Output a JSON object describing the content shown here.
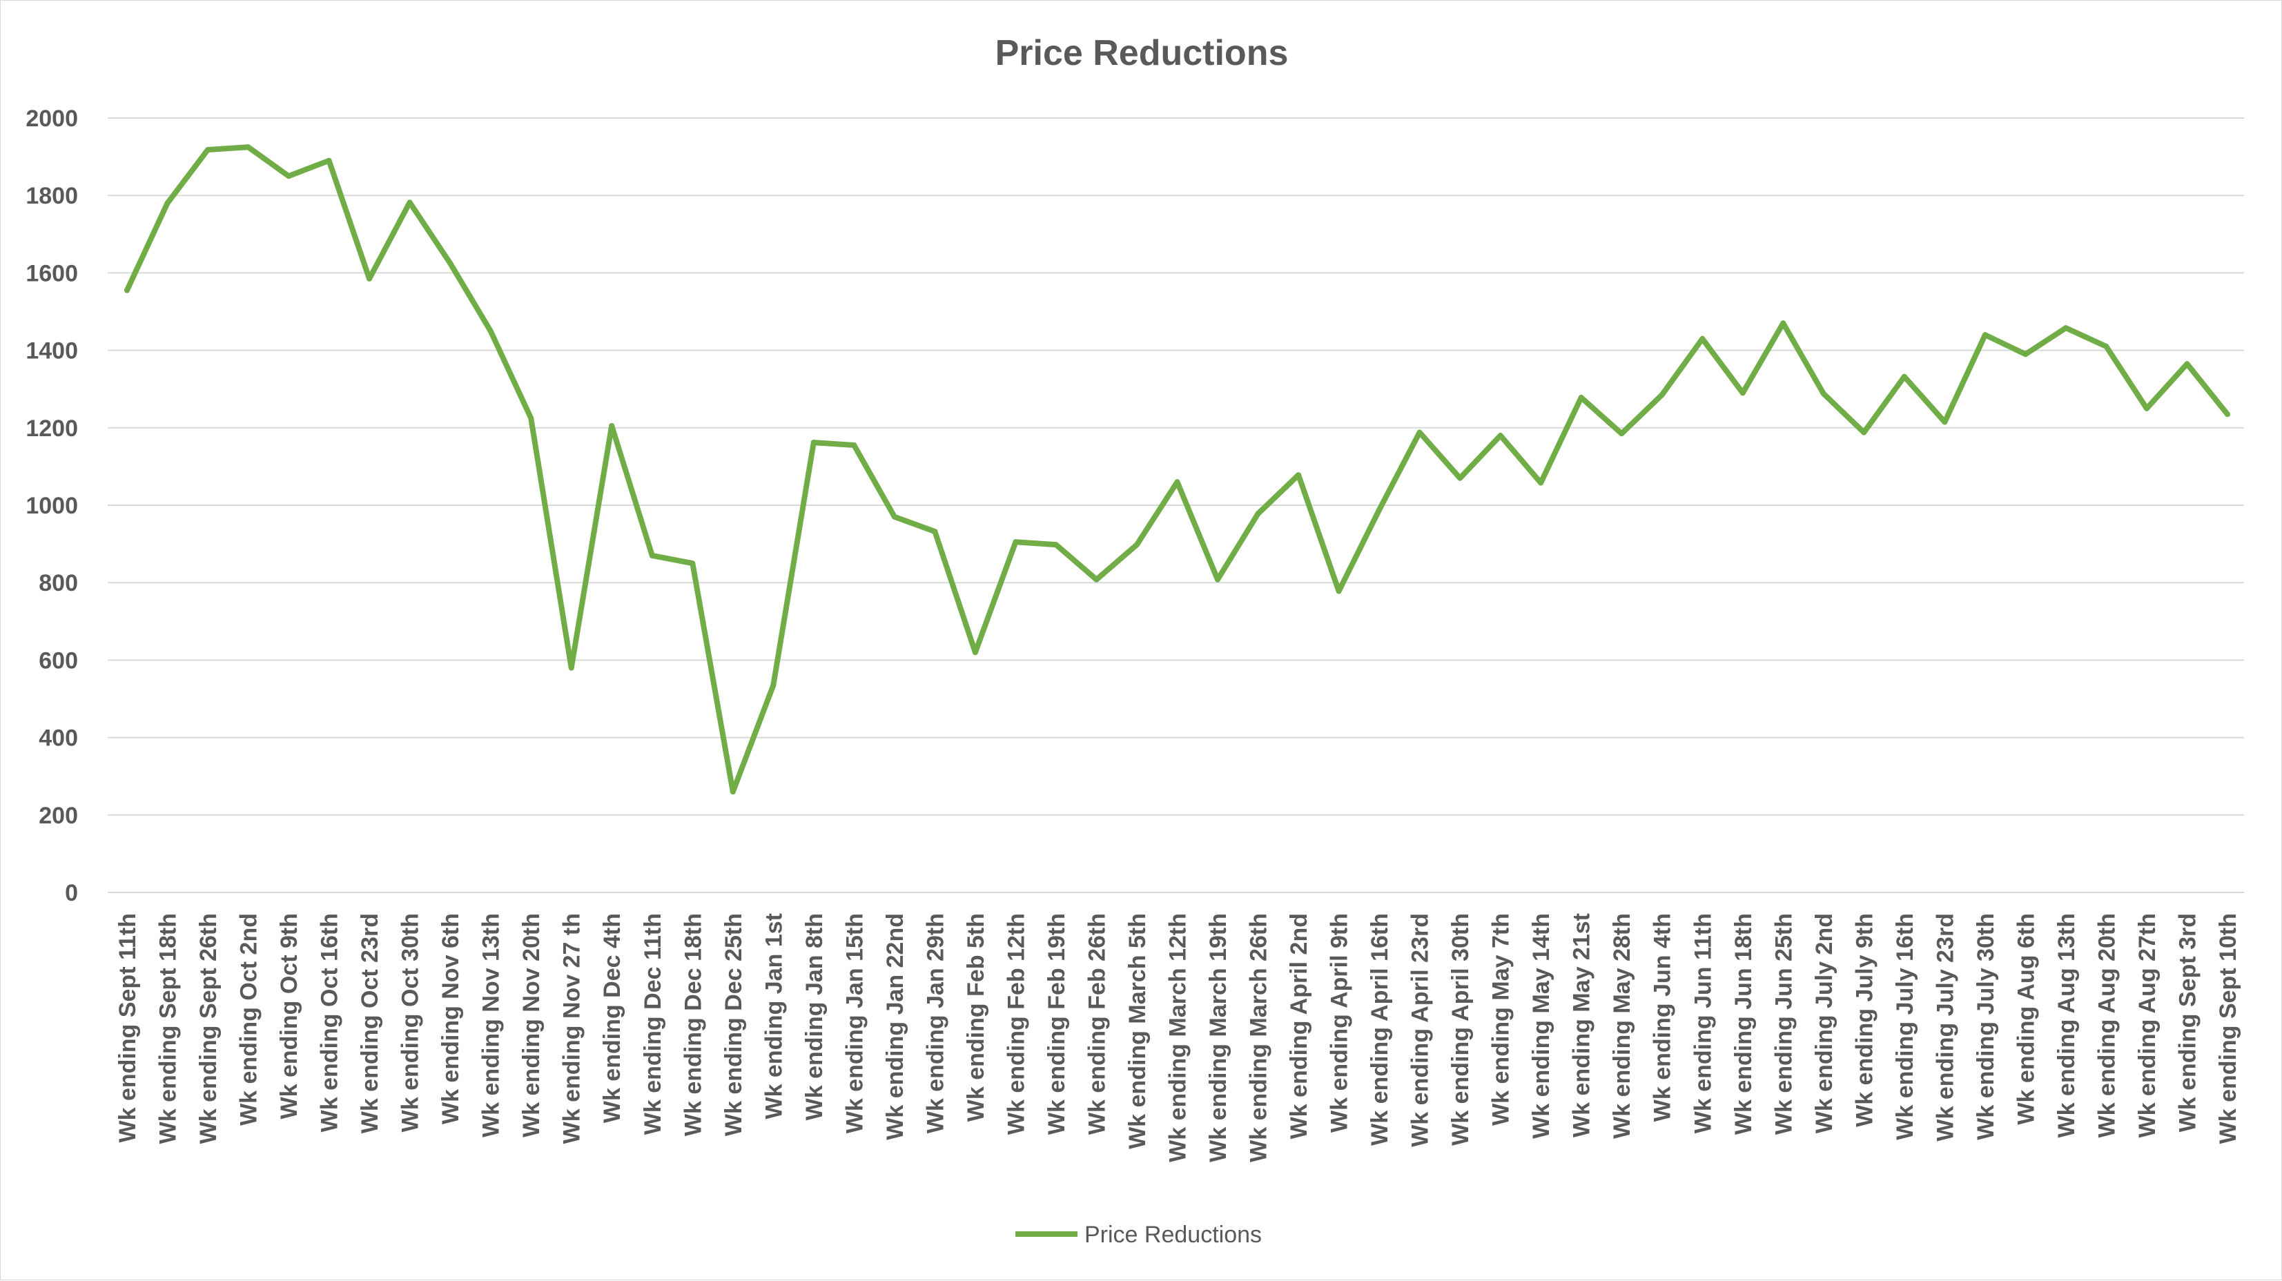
{
  "chart_data": {
    "type": "line",
    "title": "Price Reductions",
    "xlabel": "",
    "ylabel": "",
    "ylim": [
      0,
      2000
    ],
    "yticks": [
      0,
      200,
      400,
      600,
      800,
      1000,
      1200,
      1400,
      1600,
      1800,
      2000
    ],
    "grid": true,
    "legend_position": "bottom",
    "categories": [
      "Wk ending Sept 11th",
      "Wk ending Sept 18th",
      "Wk ending Sept 26th",
      "Wk ending Oct 2nd",
      "Wk ending Oct 9th",
      "Wk ending Oct 16th",
      "Wk ending Oct 23rd",
      "Wk ending Oct 30th",
      "Wk ending Nov 6th",
      "Wk ending Nov 13th",
      "Wk ending Nov 20th",
      "Wk ending Nov 27 th",
      "Wk ending Dec 4th",
      "Wk ending Dec 11th",
      "Wk ending Dec 18th",
      "Wk ending Dec 25th",
      "Wk ending Jan 1st",
      "Wk ending Jan 8th",
      "Wk ending Jan 15th",
      "Wk ending Jan 22nd",
      "Wk ending Jan 29th",
      "Wk ending Feb 5th",
      "Wk ending Feb 12th",
      "Wk ending Feb 19th",
      "Wk ending Feb 26th",
      "Wk ending March 5th",
      "Wk ending March 12th",
      "Wk ending March 19th",
      "Wk ending March 26th",
      "Wk ending April 2nd",
      "Wk ending April 9th",
      "Wk ending April 16th",
      "Wk ending April 23rd",
      "Wk ending April 30th",
      "Wk ending May 7th",
      "Wk ending May 14th",
      "Wk ending May 21st",
      "Wk ending May 28th",
      "Wk ending Jun 4th",
      "Wk ending Jun 11th",
      "Wk ending Jun 18th",
      "Wk ending Jun 25th",
      "Wk ending July 2nd",
      "Wk ending July 9th",
      "Wk ending July 16th",
      "Wk ending July 23rd",
      "Wk ending July 30th",
      "Wk ending Aug 6th",
      "Wk ending Aug 13th",
      "Wk ending Aug 20th",
      "Wk ending Aug 27th",
      "Wk ending Sept 3rd",
      "Wk ending Sept 10th"
    ],
    "series": [
      {
        "name": "Price Reductions",
        "color": "#70AD47",
        "values": [
          1555,
          1780,
          1918,
          1925,
          1850,
          1890,
          1585,
          1782,
          1625,
          1450,
          1225,
          580,
          1205,
          870,
          850,
          260,
          535,
          1162,
          1155,
          970,
          932,
          620,
          905,
          898,
          808,
          898,
          1060,
          808,
          978,
          1078,
          778,
          988,
          1188,
          1070,
          1180,
          1058,
          1278,
          1185,
          1285,
          1430,
          1290,
          1470,
          1288,
          1188,
          1332,
          1215,
          1440,
          1390,
          1458,
          1410,
          1250,
          1365,
          1235
        ]
      }
    ]
  }
}
